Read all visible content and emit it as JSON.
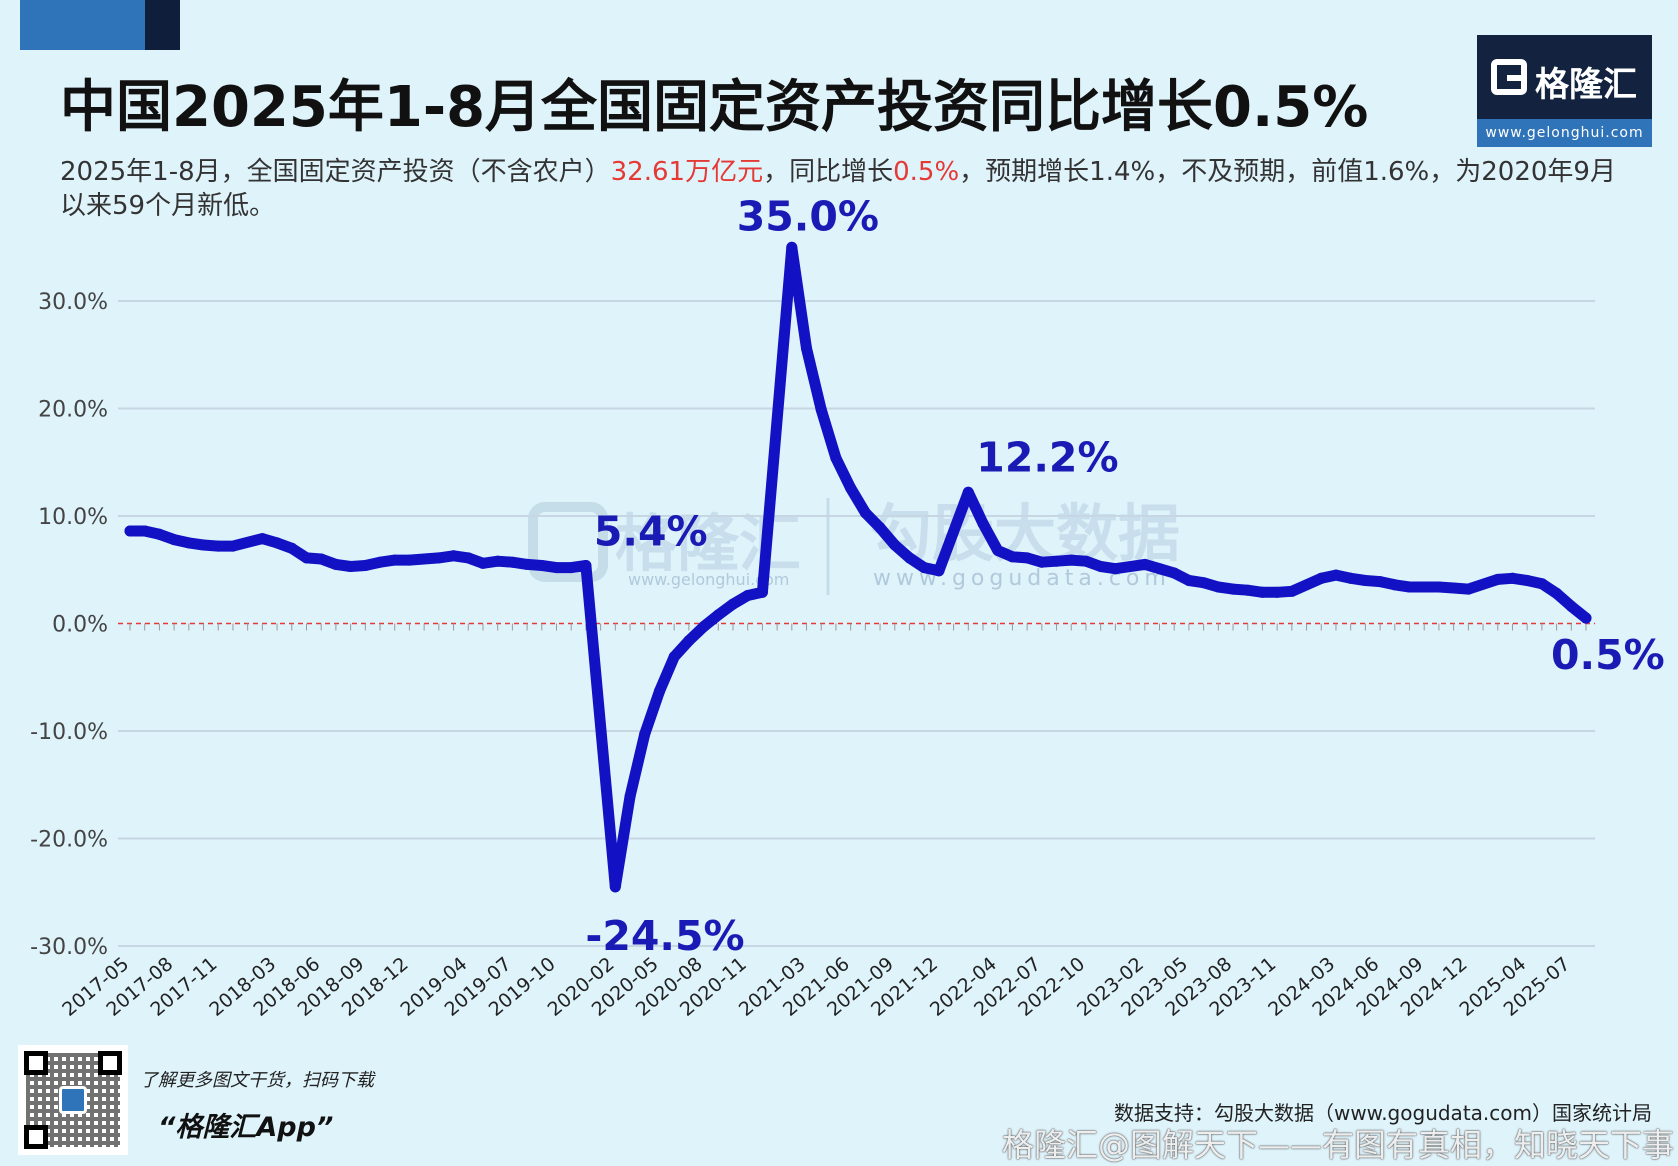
{
  "header": {
    "title": "中国2025年1-8月全国固定资产投资同比增长0.5%",
    "subtitle_parts": [
      {
        "text": "2025年1-8月，全国固定资产投资（不含农户）",
        "highlight": false
      },
      {
        "text": "32.61万亿元",
        "highlight": true
      },
      {
        "text": "，同比增长",
        "highlight": false
      },
      {
        "text": "0.5%",
        "highlight": true
      },
      {
        "text": "，预期增长1.4%，不及预期，前值1.6%，为2020年9月以来59个月新低。",
        "highlight": false
      }
    ]
  },
  "logo": {
    "name": "格隆汇",
    "url": "www.gelonghui.com"
  },
  "watermarks": {
    "left_name": "格隆汇",
    "left_url": "www.gelonghui.com",
    "right_name": "勾股大数据",
    "right_url": "www.gogudata.com"
  },
  "colors": {
    "line": "#1212c4",
    "label": "#1a1ab5",
    "zero_line": "#e53935",
    "highlight": "#e53935",
    "grid": "#c7d6e3"
  },
  "chart_data": {
    "type": "line",
    "title": "中国2025年1-8月全国固定资产投资同比增长0.5%",
    "xlabel": "",
    "ylabel": "",
    "ylim": [
      -30,
      30
    ],
    "yticks": [
      "30.0%",
      "20.0%",
      "10.0%",
      "0.0%",
      "-10.0%",
      "-20.0%",
      "-30.0%"
    ],
    "ytick_values": [
      30,
      20,
      10,
      0,
      -10,
      -20,
      -30
    ],
    "x_tick_labels": [
      "2017-05",
      "2017-08",
      "2017-11",
      "2018-03",
      "2018-06",
      "2018-09",
      "2018-12",
      "2019-04",
      "2019-07",
      "2019-10",
      "2020-02",
      "2020-05",
      "2020-08",
      "2020-11",
      "2021-03",
      "2021-06",
      "2021-09",
      "2021-12",
      "2022-04",
      "2022-07",
      "2022-10",
      "2023-02",
      "2023-05",
      "2023-08",
      "2023-11",
      "2024-03",
      "2024-06",
      "2024-09",
      "2024-12",
      "2025-04",
      "2025-07"
    ],
    "grid": "horizontal",
    "zero_line": true,
    "series": [
      {
        "x": [
          "2017-05",
          "2017-06",
          "2017-07",
          "2017-08",
          "2017-09",
          "2017-10",
          "2017-11",
          "2017-12",
          "2018-02",
          "2018-03",
          "2018-04",
          "2018-05",
          "2018-06",
          "2018-07",
          "2018-08",
          "2018-09",
          "2018-10",
          "2018-11",
          "2018-12",
          "2019-02",
          "2019-03",
          "2019-04",
          "2019-05",
          "2019-06",
          "2019-07",
          "2019-08",
          "2019-09",
          "2019-10",
          "2019-11",
          "2019-12",
          "2020-02",
          "2020-03",
          "2020-04",
          "2020-05",
          "2020-06",
          "2020-07",
          "2020-08",
          "2020-09",
          "2020-10",
          "2020-11",
          "2020-12",
          "2021-02",
          "2021-03",
          "2021-04",
          "2021-05",
          "2021-06",
          "2021-07",
          "2021-08",
          "2021-09",
          "2021-10",
          "2021-11",
          "2021-12",
          "2022-02",
          "2022-03",
          "2022-04",
          "2022-05",
          "2022-06",
          "2022-07",
          "2022-08",
          "2022-09",
          "2022-10",
          "2022-11",
          "2022-12",
          "2023-02",
          "2023-03",
          "2023-04",
          "2023-05",
          "2023-06",
          "2023-07",
          "2023-08",
          "2023-09",
          "2023-10",
          "2023-11",
          "2023-12",
          "2024-02",
          "2024-03",
          "2024-04",
          "2024-05",
          "2024-06",
          "2024-07",
          "2024-08",
          "2024-09",
          "2024-10",
          "2024-11",
          "2024-12",
          "2025-02",
          "2025-03",
          "2025-04",
          "2025-05",
          "2025-06",
          "2025-07",
          "2025-08"
        ],
        "values": [
          8.6,
          8.6,
          8.3,
          7.8,
          7.5,
          7.3,
          7.2,
          7.2,
          7.9,
          7.5,
          7.0,
          6.1,
          6.0,
          5.5,
          5.3,
          5.4,
          5.7,
          5.9,
          5.9,
          6.1,
          6.3,
          6.1,
          5.6,
          5.8,
          5.7,
          5.5,
          5.4,
          5.2,
          5.2,
          5.4,
          -24.5,
          -16.1,
          -10.3,
          -6.3,
          -3.1,
          -1.6,
          -0.3,
          0.8,
          1.8,
          2.6,
          2.9,
          35.0,
          25.6,
          19.9,
          15.4,
          12.6,
          10.3,
          8.9,
          7.3,
          6.1,
          5.2,
          4.9,
          12.2,
          9.3,
          6.8,
          6.2,
          6.1,
          5.7,
          5.8,
          5.9,
          5.8,
          5.3,
          5.1,
          5.5,
          5.1,
          4.7,
          4.0,
          3.8,
          3.4,
          3.2,
          3.1,
          2.9,
          2.9,
          3.0,
          4.2,
          4.5,
          4.2,
          4.0,
          3.9,
          3.6,
          3.4,
          3.4,
          3.4,
          3.3,
          3.2,
          4.1,
          4.2,
          4.0,
          3.7,
          2.8,
          1.6,
          0.5
        ],
        "annotations": [
          {
            "x": "2019-12",
            "value": 5.4,
            "label": "5.4%"
          },
          {
            "x": "2020-02",
            "value": -24.5,
            "label": "-24.5%"
          },
          {
            "x": "2021-02",
            "value": 35.0,
            "label": "35.0%"
          },
          {
            "x": "2022-02",
            "value": 12.2,
            "label": "12.2%"
          },
          {
            "x": "2025-08",
            "value": 0.5,
            "label": "0.5%"
          }
        ]
      }
    ]
  },
  "footer": {
    "promo": "了解更多图文干货，扫码下载",
    "app_name": "“格隆汇App”",
    "source": "数据支持：勾股大数据（www.gogudata.com）国家统计局",
    "watermark": "格隆汇@图解天下——有图有真相，知晓天下事"
  }
}
